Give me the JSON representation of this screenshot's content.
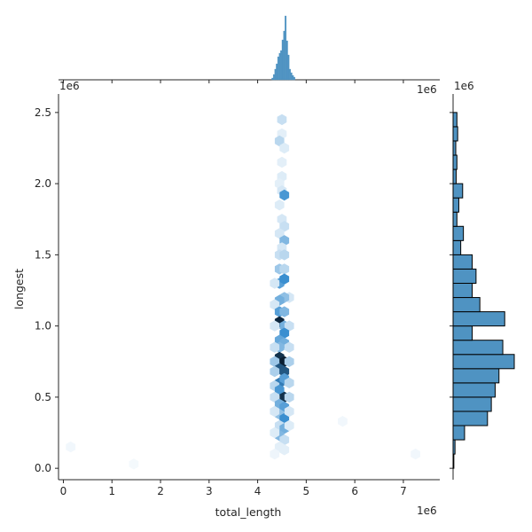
{
  "chart_data": {
    "type": "hexbin",
    "xlabel": "total_length",
    "ylabel": "longest",
    "x_offset_label": "1e6",
    "y_offset_label": "1e6",
    "top_right_offset_label": "1e6",
    "side_offset_label": "1e6",
    "xlim": [
      -0.1,
      7.75
    ],
    "ylim": [
      -0.08,
      2.63
    ],
    "x_ticks": [
      0,
      1,
      2,
      3,
      4,
      5,
      6,
      7
    ],
    "x_tick_labels": [
      "0",
      "1",
      "2",
      "3",
      "4",
      "5",
      "6",
      "7"
    ],
    "y_ticks": [
      0.0,
      0.5,
      1.0,
      1.5,
      2.0,
      2.5
    ],
    "y_tick_labels": [
      "0.0",
      "0.5",
      "1.0",
      "1.5",
      "2.0",
      "2.5"
    ],
    "colors": {
      "base": "#3b8fd0",
      "dark": "#0a1f33",
      "hist_fill": "#4f93c2",
      "hist_edge": "#000000",
      "axis": "#262626"
    },
    "hexbins": [
      {
        "x": 4.5,
        "y": 2.45,
        "d": 0.2
      },
      {
        "x": 4.5,
        "y": 2.35,
        "d": 0.1
      },
      {
        "x": 4.45,
        "y": 2.3,
        "d": 0.25
      },
      {
        "x": 4.55,
        "y": 2.25,
        "d": 0.12
      },
      {
        "x": 4.5,
        "y": 2.15,
        "d": 0.1
      },
      {
        "x": 4.5,
        "y": 2.05,
        "d": 0.12
      },
      {
        "x": 4.45,
        "y": 2.0,
        "d": 0.1
      },
      {
        "x": 4.5,
        "y": 1.95,
        "d": 0.15
      },
      {
        "x": 4.55,
        "y": 1.92,
        "d": 0.65
      },
      {
        "x": 4.45,
        "y": 1.85,
        "d": 0.12
      },
      {
        "x": 4.5,
        "y": 1.75,
        "d": 0.15
      },
      {
        "x": 4.55,
        "y": 1.7,
        "d": 0.2
      },
      {
        "x": 4.45,
        "y": 1.65,
        "d": 0.15
      },
      {
        "x": 4.55,
        "y": 1.6,
        "d": 0.45
      },
      {
        "x": 4.5,
        "y": 1.55,
        "d": 0.15
      },
      {
        "x": 4.45,
        "y": 1.5,
        "d": 0.2
      },
      {
        "x": 4.55,
        "y": 1.5,
        "d": 0.25
      },
      {
        "x": 4.45,
        "y": 1.4,
        "d": 0.35
      },
      {
        "x": 4.55,
        "y": 1.4,
        "d": 0.25
      },
      {
        "x": 4.45,
        "y": 1.3,
        "d": 0.6
      },
      {
        "x": 4.55,
        "y": 1.33,
        "d": 0.7
      },
      {
        "x": 4.35,
        "y": 1.3,
        "d": 0.15
      },
      {
        "x": 4.65,
        "y": 1.2,
        "d": 0.15
      },
      {
        "x": 4.55,
        "y": 1.2,
        "d": 0.4
      },
      {
        "x": 4.45,
        "y": 1.18,
        "d": 0.5
      },
      {
        "x": 4.35,
        "y": 1.15,
        "d": 0.15
      },
      {
        "x": 4.45,
        "y": 1.1,
        "d": 0.6
      },
      {
        "x": 4.55,
        "y": 1.1,
        "d": 0.45
      },
      {
        "x": 4.45,
        "y": 1.03,
        "d": 0.98
      },
      {
        "x": 4.55,
        "y": 1.0,
        "d": 0.5
      },
      {
        "x": 4.35,
        "y": 1.0,
        "d": 0.15
      },
      {
        "x": 4.65,
        "y": 1.0,
        "d": 0.2
      },
      {
        "x": 4.55,
        "y": 0.95,
        "d": 0.7
      },
      {
        "x": 4.45,
        "y": 0.9,
        "d": 0.55
      },
      {
        "x": 4.55,
        "y": 0.88,
        "d": 0.5
      },
      {
        "x": 4.45,
        "y": 0.85,
        "d": 0.45
      },
      {
        "x": 4.35,
        "y": 0.85,
        "d": 0.2
      },
      {
        "x": 4.65,
        "y": 0.85,
        "d": 0.2
      },
      {
        "x": 4.45,
        "y": 0.78,
        "d": 0.95
      },
      {
        "x": 4.55,
        "y": 0.75,
        "d": 1.0
      },
      {
        "x": 4.35,
        "y": 0.75,
        "d": 0.35
      },
      {
        "x": 4.65,
        "y": 0.75,
        "d": 0.3
      },
      {
        "x": 4.45,
        "y": 0.7,
        "d": 0.85
      },
      {
        "x": 4.55,
        "y": 0.68,
        "d": 0.85
      },
      {
        "x": 4.35,
        "y": 0.68,
        "d": 0.3
      },
      {
        "x": 4.45,
        "y": 0.6,
        "d": 0.75
      },
      {
        "x": 4.55,
        "y": 0.63,
        "d": 0.6
      },
      {
        "x": 4.65,
        "y": 0.6,
        "d": 0.25
      },
      {
        "x": 4.35,
        "y": 0.58,
        "d": 0.25
      },
      {
        "x": 4.45,
        "y": 0.55,
        "d": 0.65
      },
      {
        "x": 4.55,
        "y": 0.5,
        "d": 0.95
      },
      {
        "x": 4.35,
        "y": 0.5,
        "d": 0.2
      },
      {
        "x": 4.65,
        "y": 0.5,
        "d": 0.25
      },
      {
        "x": 4.45,
        "y": 0.45,
        "d": 0.5
      },
      {
        "x": 4.55,
        "y": 0.43,
        "d": 0.6
      },
      {
        "x": 4.45,
        "y": 0.38,
        "d": 0.4
      },
      {
        "x": 4.55,
        "y": 0.35,
        "d": 0.7
      },
      {
        "x": 4.35,
        "y": 0.4,
        "d": 0.15
      },
      {
        "x": 4.65,
        "y": 0.4,
        "d": 0.15
      },
      {
        "x": 4.45,
        "y": 0.3,
        "d": 0.2
      },
      {
        "x": 4.55,
        "y": 0.28,
        "d": 0.5
      },
      {
        "x": 4.45,
        "y": 0.23,
        "d": 0.45
      },
      {
        "x": 4.55,
        "y": 0.2,
        "d": 0.2
      },
      {
        "x": 4.65,
        "y": 0.3,
        "d": 0.12
      },
      {
        "x": 4.35,
        "y": 0.25,
        "d": 0.12
      },
      {
        "x": 4.45,
        "y": 0.15,
        "d": 0.1
      },
      {
        "x": 4.55,
        "y": 0.13,
        "d": 0.1
      },
      {
        "x": 4.35,
        "y": 0.1,
        "d": 0.06
      },
      {
        "x": 0.15,
        "y": 0.15,
        "d": 0.05
      },
      {
        "x": 1.45,
        "y": 0.03,
        "d": 0.04
      },
      {
        "x": 5.75,
        "y": 0.33,
        "d": 0.05
      },
      {
        "x": 7.25,
        "y": 0.1,
        "d": 0.05
      }
    ],
    "x_marginal": {
      "bin_starts": [
        4.29,
        4.32,
        4.35,
        4.38,
        4.41,
        4.44,
        4.47,
        4.5,
        4.53,
        4.56,
        4.59,
        4.62,
        4.65,
        4.68,
        4.71,
        4.74
      ],
      "bin_width": 0.03,
      "counts": [
        2,
        6,
        12,
        18,
        26,
        30,
        33,
        45,
        55,
        72,
        44,
        28,
        12,
        8,
        5,
        3
      ]
    },
    "y_marginal": {
      "bin_starts": [
        0.0,
        0.1,
        0.2,
        0.3,
        0.4,
        0.5,
        0.6,
        0.7,
        0.8,
        0.9,
        1.0,
        1.1,
        1.2,
        1.3,
        1.4,
        1.5,
        1.6,
        1.7,
        1.8,
        1.9,
        2.0,
        2.1,
        2.2,
        2.3,
        2.4
      ],
      "bin_width": 0.1,
      "counts": [
        0.2,
        0.5,
        3,
        9,
        10,
        11,
        12,
        16,
        13,
        5,
        13.5,
        7,
        5,
        6,
        5,
        2,
        2.7,
        1,
        1.5,
        2.5,
        0.8,
        1,
        0.7,
        1.2,
        1
      ]
    }
  }
}
